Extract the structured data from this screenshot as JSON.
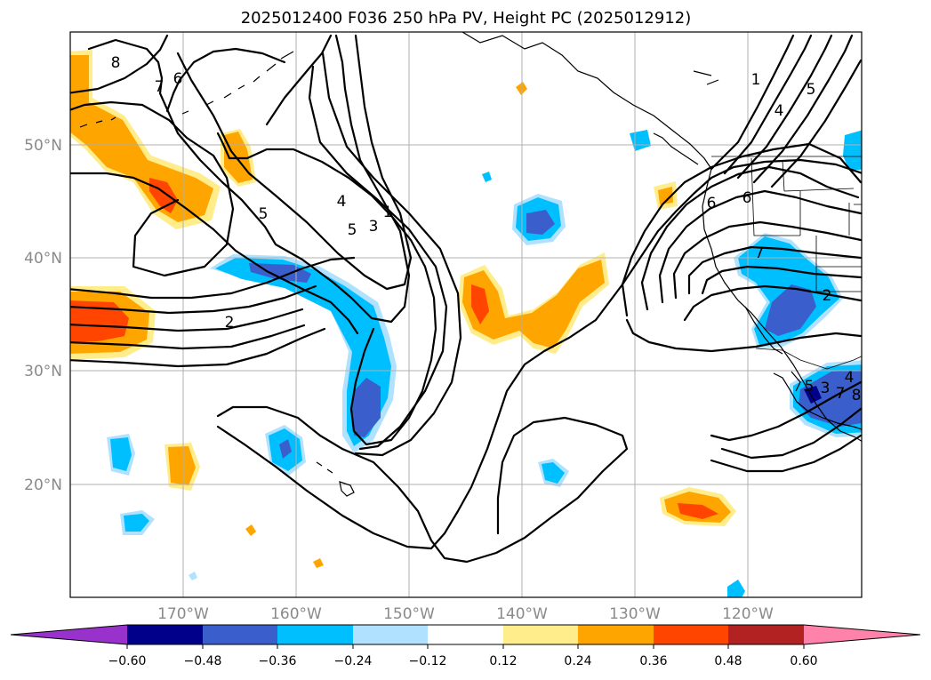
{
  "title": "2025012400 F036 250 hPa PV, Height PC (2025012912)",
  "map": {
    "lon_range": [
      -180,
      -110
    ],
    "lat_range": [
      10,
      60
    ],
    "lon_ticks": [
      "170°W",
      "160°W",
      "150°W",
      "140°W",
      "130°W",
      "120°W"
    ],
    "lat_ticks": [
      "50°N",
      "40°N",
      "30°N",
      "20°N"
    ],
    "grid": true
  },
  "contour_labels": [
    "8",
    "7",
    "6",
    "5",
    "4",
    "3",
    "2",
    "1",
    "5",
    "7",
    "2",
    "6",
    "4",
    "5",
    "3",
    "5",
    "1",
    "4",
    "6",
    "7",
    "8"
  ],
  "colorbar": {
    "ticks": [
      "−0.60",
      "−0.48",
      "−0.36",
      "−0.24",
      "−0.12",
      "0.12",
      "0.24",
      "0.36",
      "0.48",
      "0.60"
    ],
    "colors": {
      "under": "#9932cc",
      "neg_060": "#00008b",
      "neg_048": "#3a5fcd",
      "neg_036": "#00bfff",
      "neg_024": "#b0e2ff",
      "neutral": "#ffffff",
      "pos_012": "#ffec8b",
      "pos_024": "#ffa500",
      "pos_036": "#ff4500",
      "pos_048": "#b22222",
      "over": "#ff82ab"
    }
  }
}
